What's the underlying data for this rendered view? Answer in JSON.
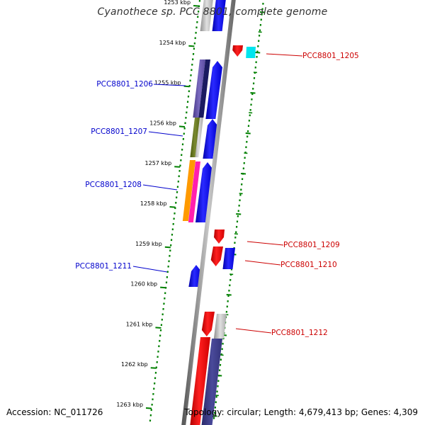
{
  "title": "Cyanothece sp. PCC 8801, complete genome",
  "accession": "Accession: NC_011726",
  "topology": "Topology: circular; Length: 4,679,413 bp; Genes: 4,309",
  "ticks": [
    "1253 kbp",
    "1254 kbp",
    "1255 kbp",
    "1256 kbp",
    "1257 kbp",
    "1258 kbp",
    "1259 kbp",
    "1260 kbp",
    "1261 kbp",
    "1262 kbp",
    "1263 kbp"
  ],
  "gene_labels": [
    {
      "name": "PCC8801_1205",
      "color": "#cc0000"
    },
    {
      "name": "PCC8801_1206",
      "color": "#0000cc"
    },
    {
      "name": "PCC8801_1207",
      "color": "#0000cc"
    },
    {
      "name": "PCC8801_1208",
      "color": "#0000cc"
    },
    {
      "name": "PCC8801_1209",
      "color": "#cc0000"
    },
    {
      "name": "PCC8801_1210",
      "color": "#cc0000"
    },
    {
      "name": "PCC8801_1211",
      "color": "#0000cc"
    },
    {
      "name": "PCC8801_1212",
      "color": "#cc0000"
    }
  ],
  "colors": {
    "forward_gene": "#0000ff",
    "reverse_gene": "#ff0000",
    "dna_axis": "#888888",
    "tick": "#008000",
    "reverse_label": "#cc0000",
    "forward_label": "#0000cc"
  }
}
